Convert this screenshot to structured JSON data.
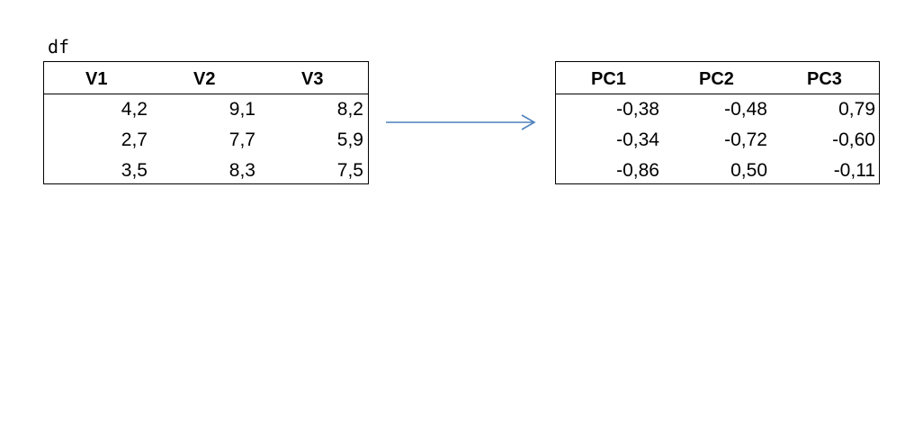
{
  "left_table": {
    "label": "df",
    "headers": [
      "V1",
      "V2",
      "V3"
    ],
    "rows": [
      [
        "4,2",
        "9,1",
        "8,2"
      ],
      [
        "2,7",
        "7,7",
        "5,9"
      ],
      [
        "3,5",
        "8,3",
        "7,5"
      ]
    ]
  },
  "right_table": {
    "headers": [
      "PC1",
      "PC2",
      "PC3"
    ],
    "rows": [
      [
        "-0,38",
        "-0,48",
        "0,79"
      ],
      [
        "-0,34",
        "-0,72",
        "-0,60"
      ],
      [
        "-0,86",
        "0,50",
        "-0,11"
      ]
    ]
  },
  "arrow": {
    "icon": "arrow-right-icon",
    "color": "#4F81BD"
  }
}
